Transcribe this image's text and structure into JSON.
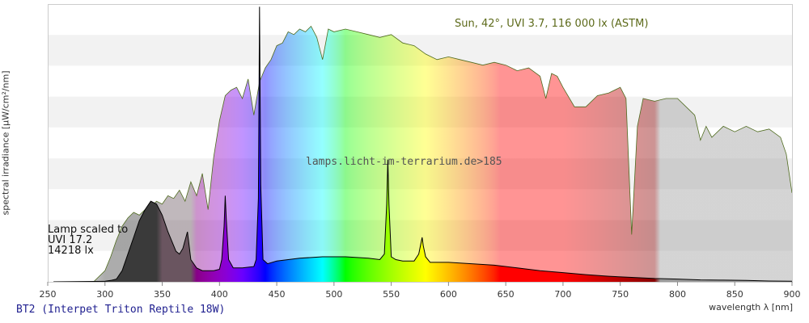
{
  "chart_data": {
    "type": "area",
    "xlabel": "wavelength λ [nm]",
    "ylabel": "spectral irradiance [µW/cm²/nm]",
    "xlim": [
      250,
      900
    ],
    "ylim": [
      0,
      100
    ],
    "x_ticks": [
      250,
      300,
      350,
      400,
      450,
      500,
      550,
      600,
      650,
      700,
      750,
      800,
      850,
      900
    ],
    "grid": "horizontal alternating bands",
    "caption": "BT2 (Interpet Triton Reptile 18W)",
    "watermark": "lamps.licht-im-terrarium.de>185",
    "sun_label": "Sun, 42°, UVI 3.7, 116 000 lx (ASTM)",
    "lamp_note": [
      "Lamp scaled to",
      "UVI 17.2",
      "14218 lx"
    ],
    "series": [
      {
        "name": "Sun, 42°, UVI 3.7, 116 000 lx (ASTM)",
        "color": "#4f6b1f",
        "x": [
          290,
          300,
          305,
          310,
          315,
          320,
          325,
          330,
          335,
          340,
          345,
          350,
          355,
          360,
          365,
          370,
          375,
          380,
          385,
          390,
          395,
          400,
          405,
          410,
          415,
          420,
          425,
          430,
          435,
          440,
          445,
          450,
          455,
          460,
          465,
          470,
          475,
          480,
          485,
          490,
          495,
          500,
          510,
          520,
          530,
          540,
          550,
          560,
          570,
          580,
          590,
          600,
          610,
          620,
          630,
          640,
          650,
          660,
          670,
          680,
          685,
          690,
          695,
          700,
          710,
          720,
          730,
          740,
          750,
          755,
          760,
          765,
          770,
          780,
          790,
          800,
          810,
          815,
          820,
          825,
          830,
          840,
          850,
          860,
          870,
          880,
          890,
          895,
          900
        ],
        "y": [
          0,
          4,
          9,
          15,
          20,
          23,
          25,
          24,
          26,
          27,
          29,
          28,
          31,
          30,
          33,
          29,
          36,
          31,
          39,
          26,
          45,
          58,
          67,
          69,
          70,
          66,
          73,
          60,
          72,
          77,
          80,
          85,
          86,
          90,
          89,
          91,
          90,
          92,
          88,
          80,
          91,
          90,
          91,
          90,
          89,
          88,
          89,
          86,
          85,
          82,
          80,
          81,
          80,
          79,
          78,
          79,
          78,
          76,
          77,
          74,
          66,
          75,
          74,
          70,
          63,
          63,
          67,
          68,
          70,
          66,
          17,
          56,
          66,
          65,
          66,
          66,
          62,
          60,
          51,
          56,
          52,
          56,
          54,
          56,
          54,
          55,
          52,
          46,
          32
        ]
      },
      {
        "name": "BT2 (Interpet Triton Reptile 18W)",
        "color": "#000000",
        "x": [
          255,
          300,
          305,
          310,
          315,
          320,
          325,
          330,
          335,
          340,
          345,
          350,
          355,
          360,
          362,
          365,
          368,
          372,
          375,
          380,
          385,
          390,
          395,
          400,
          402,
          404,
          405,
          406,
          408,
          412,
          420,
          430,
          432,
          434,
          435,
          436,
          438,
          442,
          450,
          470,
          490,
          510,
          530,
          540,
          544,
          546,
          547,
          548,
          550,
          554,
          560,
          570,
          574,
          577,
          578,
          580,
          584,
          600,
          620,
          640,
          660,
          680,
          700,
          720,
          740,
          760,
          780,
          800,
          820,
          840,
          860,
          880,
          900
        ],
        "y": [
          0,
          0.2,
          0.5,
          1,
          4,
          10,
          16,
          22,
          26,
          29,
          28,
          24,
          18,
          13,
          11,
          10,
          12,
          18,
          8,
          5,
          4,
          4,
          4,
          4.5,
          8,
          20,
          31,
          22,
          8,
          5,
          5,
          5.5,
          8,
          30,
          99,
          35,
          8,
          6.5,
          7.5,
          8.5,
          9,
          9,
          8.5,
          8,
          10,
          28,
          44,
          28,
          9,
          8,
          7.5,
          7.5,
          10,
          16,
          13,
          9,
          7,
          7,
          6.5,
          6,
          5,
          4,
          3.3,
          2.6,
          2,
          1.6,
          1.2,
          1,
          0.7,
          0.6,
          0.5,
          0.3,
          0.2
        ]
      }
    ]
  }
}
